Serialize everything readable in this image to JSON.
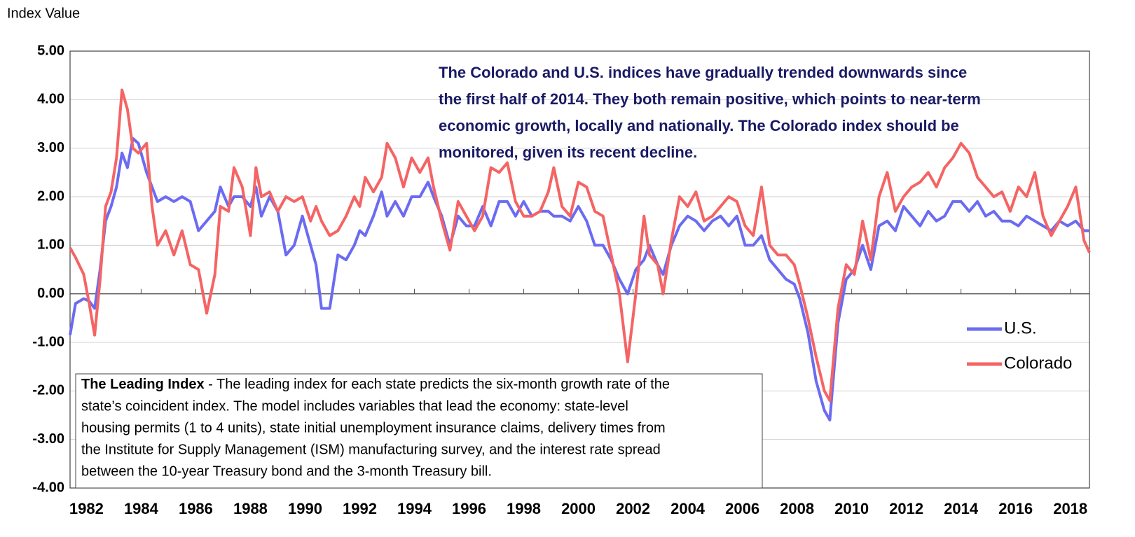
{
  "chart_data": {
    "type": "line",
    "y_label": "Index Value",
    "annotation": [
      "The Colorado and U.S. indices have gradually trended downwards since",
      "the first half of 2014. They both remain positive, which points to near-term",
      "economic growth, locally and nationally. The Colorado index should be",
      "monitored, given its recent decline."
    ],
    "footnote_title": "The Leading Index",
    "footnote": [
      " - The leading index for each state predicts the six-month growth rate of the",
      "state’s coincident index. The model includes variables that lead the economy: state-level",
      "housing permits (1 to 4 units), state initial unemployment insurance claims, delivery times from",
      "the Institute for Supply Management (ISM) manufacturing survey, and the interest rate spread",
      "between the 10-year Treasury bond and the 3-month Treasury bill."
    ],
    "legend": "right",
    "grid": true,
    "xlim": [
      1981.4,
      2018.7
    ],
    "xticks": [
      1982,
      1984,
      1986,
      1988,
      1990,
      1992,
      1994,
      1996,
      1998,
      2000,
      2002,
      2004,
      2006,
      2008,
      2010,
      2012,
      2014,
      2016,
      2018
    ],
    "ylim": [
      -4,
      5
    ],
    "yticks": [
      {
        "value": -4,
        "label": "-4.00"
      },
      {
        "value": -3,
        "label": "-3.00"
      },
      {
        "value": -2,
        "label": "-2.00"
      },
      {
        "value": -1,
        "label": "-1.00"
      },
      {
        "value": 0,
        "label": "0.00"
      },
      {
        "value": 1,
        "label": "1.00"
      },
      {
        "value": 2,
        "label": "2.00"
      },
      {
        "value": 3,
        "label": "3.00"
      },
      {
        "value": 4,
        "label": "4.00"
      },
      {
        "value": 5,
        "label": "5.00"
      }
    ],
    "x": [
      1981.4,
      1981.6,
      1981.9,
      1982.1,
      1982.3,
      1982.5,
      1982.7,
      1982.9,
      1983.1,
      1983.3,
      1983.5,
      1983.7,
      1983.9,
      1984.2,
      1984.4,
      1984.6,
      1984.9,
      1985.2,
      1985.5,
      1985.8,
      1986.1,
      1986.4,
      1986.7,
      1986.9,
      1987.2,
      1987.4,
      1987.7,
      1988.0,
      1988.2,
      1988.4,
      1988.7,
      1989.0,
      1989.3,
      1989.6,
      1989.9,
      1990.2,
      1990.4,
      1990.6,
      1990.9,
      1991.2,
      1991.5,
      1991.8,
      1992.0,
      1992.2,
      1992.5,
      1992.8,
      1993.0,
      1993.3,
      1993.6,
      1993.9,
      1994.2,
      1994.5,
      1994.7,
      1995.0,
      1995.3,
      1995.6,
      1995.9,
      1996.2,
      1996.5,
      1996.8,
      1997.1,
      1997.4,
      1997.7,
      1998.0,
      1998.3,
      1998.6,
      1998.9,
      1999.1,
      1999.4,
      1999.7,
      2000.0,
      2000.3,
      2000.6,
      2000.9,
      2001.2,
      2001.5,
      2001.8,
      2002.1,
      2002.4,
      2002.6,
      2002.9,
      2003.1,
      2003.4,
      2003.7,
      2004.0,
      2004.3,
      2004.6,
      2004.9,
      2005.2,
      2005.5,
      2005.8,
      2006.1,
      2006.4,
      2006.7,
      2007.0,
      2007.3,
      2007.6,
      2007.9,
      2008.1,
      2008.4,
      2008.7,
      2009.0,
      2009.2,
      2009.5,
      2009.8,
      2010.1,
      2010.4,
      2010.7,
      2011.0,
      2011.3,
      2011.6,
      2011.9,
      2012.2,
      2012.5,
      2012.8,
      2013.1,
      2013.4,
      2013.7,
      2014.0,
      2014.3,
      2014.6,
      2014.9,
      2015.2,
      2015.5,
      2015.8,
      2016.1,
      2016.4,
      2016.7,
      2017.0,
      2017.3,
      2017.6,
      2017.9,
      2018.2,
      2018.5,
      2018.7
    ],
    "series": [
      {
        "name": "U.S.",
        "color": "#6b6bf2",
        "values": [
          -0.85,
          -0.2,
          -0.1,
          -0.15,
          -0.3,
          0.5,
          1.5,
          1.8,
          2.2,
          2.9,
          2.6,
          3.2,
          3.1,
          2.5,
          2.2,
          1.9,
          2.0,
          1.9,
          2.0,
          1.9,
          1.3,
          1.5,
          1.7,
          2.2,
          1.8,
          2.0,
          2.0,
          1.8,
          2.2,
          1.6,
          2.0,
          1.7,
          0.8,
          1.0,
          1.6,
          1.0,
          0.6,
          -0.3,
          -0.3,
          0.8,
          0.7,
          1.0,
          1.3,
          1.2,
          1.6,
          2.1,
          1.6,
          1.9,
          1.6,
          2.0,
          2.0,
          2.3,
          2.0,
          1.6,
          1.0,
          1.6,
          1.4,
          1.4,
          1.8,
          1.4,
          1.9,
          1.9,
          1.6,
          1.9,
          1.6,
          1.7,
          1.7,
          1.6,
          1.6,
          1.5,
          1.8,
          1.5,
          1.0,
          1.0,
          0.7,
          0.3,
          0.0,
          0.5,
          0.7,
          1.0,
          0.6,
          0.4,
          1.0,
          1.4,
          1.6,
          1.5,
          1.3,
          1.5,
          1.6,
          1.4,
          1.6,
          1.0,
          1.0,
          1.2,
          0.7,
          0.5,
          0.3,
          0.2,
          -0.1,
          -0.8,
          -1.8,
          -2.4,
          -2.6,
          -0.6,
          0.3,
          0.5,
          1.0,
          0.5,
          1.4,
          1.5,
          1.3,
          1.8,
          1.6,
          1.4,
          1.7,
          1.5,
          1.6,
          1.9,
          1.9,
          1.7,
          1.9,
          1.6,
          1.7,
          1.5,
          1.5,
          1.4,
          1.6,
          1.5,
          1.4,
          1.3,
          1.5,
          1.4,
          1.5,
          1.3,
          1.3
        ]
      },
      {
        "name": "Colorado",
        "color": "#f56464",
        "values": [
          0.95,
          0.75,
          0.4,
          -0.2,
          -0.85,
          0.3,
          1.8,
          2.1,
          2.8,
          4.2,
          3.8,
          3.0,
          2.9,
          3.1,
          1.8,
          1.0,
          1.3,
          0.8,
          1.3,
          0.6,
          0.5,
          -0.4,
          0.4,
          1.8,
          1.7,
          2.6,
          2.2,
          1.2,
          2.6,
          2.0,
          2.1,
          1.7,
          2.0,
          1.9,
          2.0,
          1.5,
          1.8,
          1.5,
          1.2,
          1.3,
          1.6,
          2.0,
          1.8,
          2.4,
          2.1,
          2.4,
          3.1,
          2.8,
          2.2,
          2.8,
          2.5,
          2.8,
          2.2,
          1.5,
          0.9,
          1.9,
          1.6,
          1.3,
          1.6,
          2.6,
          2.5,
          2.7,
          1.9,
          1.6,
          1.6,
          1.7,
          2.1,
          2.6,
          1.8,
          1.6,
          2.3,
          2.2,
          1.7,
          1.6,
          0.8,
          0.0,
          -1.4,
          0.0,
          1.6,
          0.8,
          0.6,
          0.0,
          1.1,
          2.0,
          1.8,
          2.1,
          1.5,
          1.6,
          1.8,
          2.0,
          1.9,
          1.4,
          1.2,
          2.2,
          1.0,
          0.8,
          0.8,
          0.6,
          0.2,
          -0.5,
          -1.3,
          -2.0,
          -2.2,
          -0.3,
          0.6,
          0.4,
          1.5,
          0.7,
          2.0,
          2.5,
          1.7,
          2.0,
          2.2,
          2.3,
          2.5,
          2.2,
          2.6,
          2.8,
          3.1,
          2.9,
          2.4,
          2.2,
          2.0,
          2.1,
          1.7,
          2.2,
          2.0,
          2.5,
          1.6,
          1.2,
          1.5,
          1.8,
          2.2,
          1.1,
          0.85
        ]
      }
    ]
  }
}
